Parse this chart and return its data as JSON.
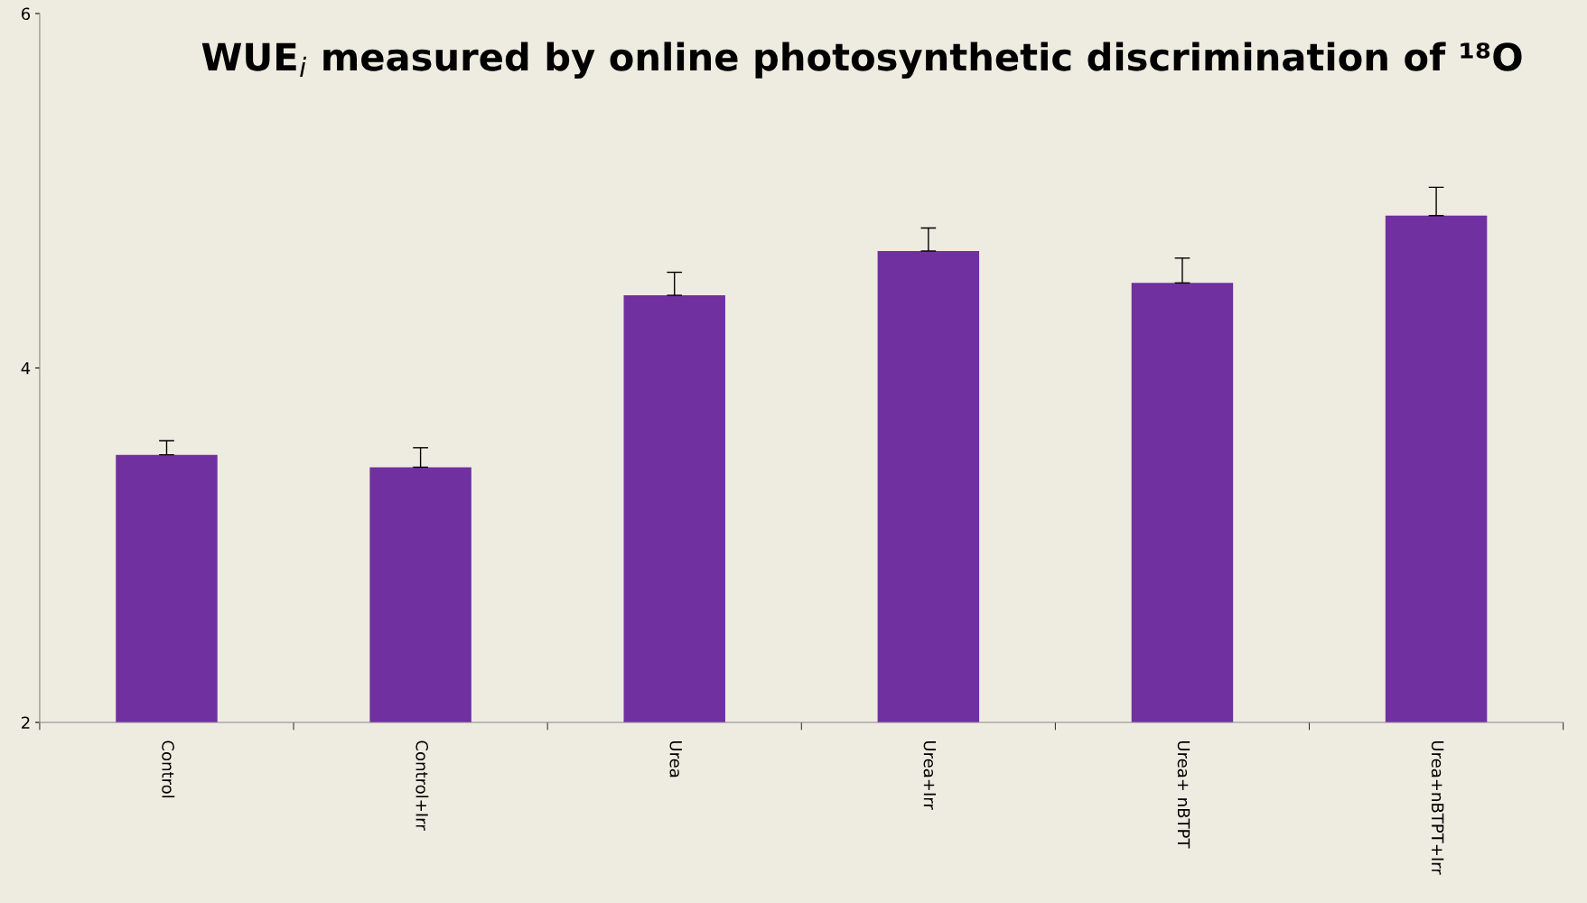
{
  "chart_data": {
    "type": "bar",
    "title": "WUE$_{i}$ measured by online photosynthetic discrimination of ¹⁸O",
    "categories": [
      "Control",
      "Control+Irr",
      "Urea",
      "Urea+Irr",
      "Urea+ nBTPT",
      "Urea+nBTPT+Irr"
    ],
    "values": [
      3.51,
      3.44,
      4.41,
      4.66,
      4.48,
      4.86
    ],
    "errors": [
      [
        3.51,
        3.59
      ],
      [
        3.44,
        3.55
      ],
      [
        4.41,
        4.54
      ],
      [
        4.66,
        4.79
      ],
      [
        4.48,
        4.62
      ],
      [
        4.86,
        5.02
      ]
    ],
    "color": "#7030a0",
    "ylim": [
      2,
      6
    ],
    "yticks": [
      2,
      4,
      6
    ],
    "grid": false
  }
}
